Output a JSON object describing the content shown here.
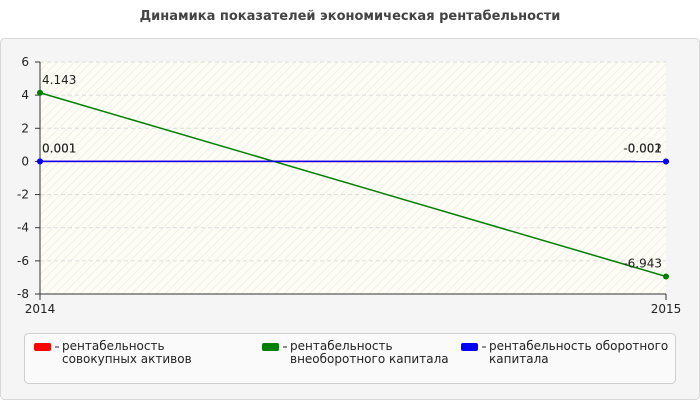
{
  "chart_data": {
    "type": "line",
    "title": "Динамика показателей экономическая рентабельности",
    "categories": [
      "2014",
      "2015"
    ],
    "series": [
      {
        "name": "рентабельность совокупных активов",
        "color": "#ff0000",
        "values": [
          0.001,
          -0.002
        ]
      },
      {
        "name": "рентабельность внеоборотного капитала",
        "color": "#008000",
        "values": [
          4.143,
          -6.943
        ]
      },
      {
        "name": "рентабельность оборотного капитала",
        "color": "#0000ff",
        "values": [
          0.001,
          -0.001
        ]
      }
    ],
    "ylim": [
      -8,
      6
    ],
    "yticks": [
      -8,
      -6,
      -4,
      -2,
      0,
      2,
      4,
      6
    ],
    "grid": true
  }
}
